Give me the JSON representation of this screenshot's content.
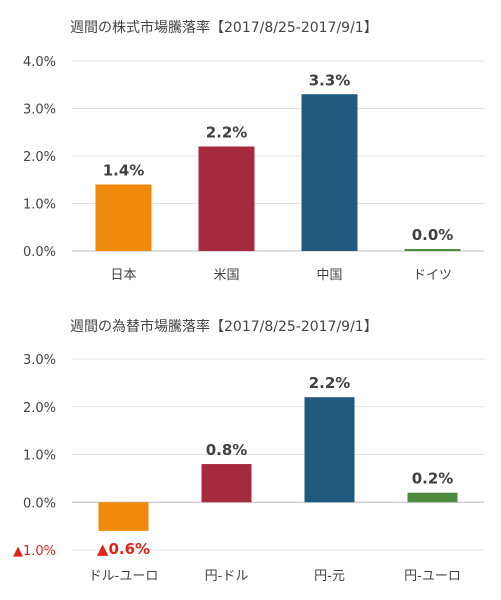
{
  "chart_data": [
    {
      "type": "bar",
      "title": "週間の株式市場騰落率【2017/8/25-2017/9/1】",
      "categories": [
        "日本",
        "米国",
        "中国",
        "ドイツ"
      ],
      "values": [
        1.4,
        2.2,
        3.3,
        0.0
      ],
      "value_labels": [
        "1.4%",
        "2.2%",
        "3.3%",
        "0.0%"
      ],
      "colors": [
        "#f08a0c",
        "#a52a3c",
        "#1f5a7e",
        "#4e8a3f"
      ],
      "ylim": [
        0,
        4
      ],
      "yticks": [
        0,
        1,
        2,
        3,
        4
      ],
      "ytick_labels": [
        "0.0%",
        "1.0%",
        "2.0%",
        "3.0%",
        "4.0%"
      ],
      "grid": true,
      "legend": "none"
    },
    {
      "type": "bar",
      "title": "週間の為替市場騰落率【2017/8/25-2017/9/1】",
      "categories": [
        "ドル-ユーロ",
        "円-ドル",
        "円-元",
        "円-ユーロ"
      ],
      "values": [
        -0.6,
        0.8,
        2.2,
        0.2
      ],
      "value_labels": [
        "▲0.6%",
        "0.8%",
        "2.2%",
        "0.2%"
      ],
      "colors": [
        "#f08a0c",
        "#a52a3c",
        "#1f5a7e",
        "#4e8a3f"
      ],
      "ylim": [
        -1,
        3
      ],
      "yticks": [
        -1,
        0,
        1,
        2,
        3
      ],
      "ytick_labels": [
        "▲1.0%",
        "0.0%",
        "1.0%",
        "2.0%",
        "3.0%"
      ],
      "negative_color": "#e0251b",
      "grid": true,
      "legend": "none"
    }
  ]
}
